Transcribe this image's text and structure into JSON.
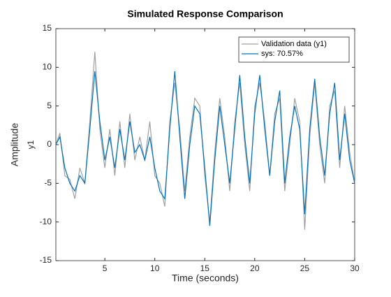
{
  "chart_data": {
    "type": "line",
    "title": "Simulated Response Comparison",
    "x_label": "Time (seconds)",
    "y_label": "Amplitude",
    "channel_label": "y1",
    "x": [
      0.1,
      0.5,
      1,
      1.5,
      2,
      2.5,
      3,
      3.5,
      4,
      4.5,
      5,
      5.5,
      6,
      6.5,
      7,
      7.5,
      8,
      8.5,
      9,
      9.5,
      10,
      10.5,
      11,
      11.5,
      12,
      12.5,
      13,
      13.5,
      14,
      14.5,
      15,
      15.5,
      16,
      16.5,
      17,
      17.5,
      18,
      18.5,
      19,
      19.5,
      20,
      20.5,
      21,
      21.5,
      22,
      22.5,
      23,
      23.5,
      24,
      24.5,
      25,
      25.5,
      26,
      26.5,
      27,
      27.5,
      28,
      28.5,
      29,
      29.5,
      30
    ],
    "series": [
      {
        "name": "Validation data (y1)",
        "color": "#a0a0a0",
        "values": [
          0,
          1.5,
          -4,
          -4.5,
          -7,
          -3,
          -5,
          3,
          12,
          2,
          -3,
          2,
          -4,
          3,
          -3,
          4,
          -2,
          1,
          -2,
          3,
          -4,
          -5,
          -8,
          3,
          8,
          2,
          -6,
          1,
          6,
          5,
          -4,
          -10,
          -1,
          6,
          1,
          -6,
          3,
          8,
          0,
          -6,
          5,
          8,
          3,
          -4,
          4,
          6,
          -6,
          0,
          6,
          3,
          -11,
          1,
          8,
          0,
          -5,
          5,
          7,
          -3,
          5,
          -1,
          -5
        ]
      },
      {
        "name": "sys: 70.57%",
        "color": "#0072bd",
        "values": [
          0,
          1,
          -3,
          -5,
          -6,
          -4,
          -5,
          2,
          9.5,
          3,
          -2,
          1,
          -3,
          2,
          -2,
          3,
          -1,
          0,
          -2,
          1,
          -3,
          -6,
          -7,
          2,
          9.5,
          1,
          -7,
          0,
          5,
          4,
          -3,
          -10.5,
          -2,
          5,
          0,
          -5,
          2,
          9,
          1,
          -5,
          4,
          9,
          2,
          -4,
          3,
          7,
          -5,
          1,
          5,
          2,
          -9,
          2,
          8.5,
          1,
          -4,
          4,
          8,
          -2,
          4,
          -2,
          -5
        ]
      }
    ],
    "xlim": [
      0.1,
      30
    ],
    "xticks": [
      5,
      10,
      15,
      20,
      25,
      30
    ],
    "ylim": [
      -15,
      15
    ],
    "yticks": [
      -15,
      -10,
      -5,
      0,
      5,
      10,
      15
    ],
    "legend": "upper right"
  }
}
